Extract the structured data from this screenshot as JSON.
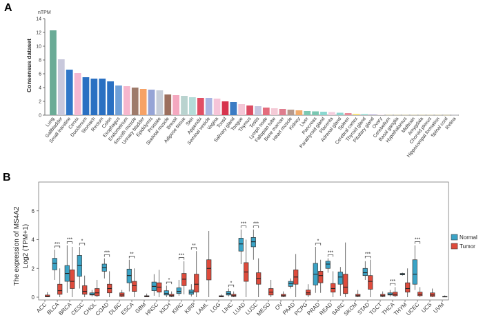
{
  "chart_data": [
    {
      "type": "bar",
      "panel_label": "A",
      "ylabel": "Consensus dataset",
      "unit_label": "nTPM",
      "ylim": [
        0,
        14
      ],
      "yticks": [
        0,
        2,
        4,
        6,
        8,
        10,
        12,
        14
      ],
      "categories": [
        "Lung",
        "Gallbladder",
        "Small intestine",
        "Cervix",
        "Duodenum",
        "Stomach",
        "Rectum",
        "Colon",
        "Esophagus",
        "Endometrium",
        "Smooth muscle",
        "Urinary bladder",
        "Epididymis",
        "Prostate",
        "Skeletal muscle",
        "Breast",
        "Adipose tissue",
        "Skin",
        "Appendix",
        "Seminal vesicle",
        "Vagina",
        "Tonsil",
        "Salivary gland",
        "Tongue",
        "Thymus",
        "Testis",
        "Lymph node",
        "Fallopian tube",
        "Bone marrow",
        "Heart muscle",
        "Kidney",
        "Liver",
        "Pancreas",
        "Parathyroid gland",
        "Placenta",
        "Adrenal gland",
        "Spleen",
        "Cerebral cortex",
        "Thyroid gland",
        "Pituitary gland",
        "Ovary",
        "Cerebellum",
        "Basal ganglia",
        "Hypothalamus",
        "Midbrain",
        "Amygdala",
        "Choroid plexus",
        "Hippocampal formation",
        "Spinal cord",
        "Retina"
      ],
      "values": [
        12.3,
        8.1,
        6.6,
        6.1,
        5.5,
        5.3,
        5.3,
        4.9,
        4.3,
        4.2,
        4.0,
        3.8,
        3.7,
        3.6,
        3.0,
        2.9,
        2.8,
        2.6,
        2.5,
        2.5,
        2.4,
        2.0,
        1.9,
        1.6,
        1.4,
        1.3,
        1.1,
        1.0,
        0.9,
        0.8,
        0.7,
        0.6,
        0.55,
        0.5,
        0.45,
        0.35,
        0.3,
        0.2,
        0.15,
        0.1,
        0.05,
        0.03,
        0.03,
        0.03,
        0.03,
        0.03,
        0.03,
        0.03,
        0.02,
        0.02
      ],
      "colors": [
        "#6aab96",
        "#c8c8dc",
        "#2f77c8",
        "#f4b8d2",
        "#2a70c2",
        "#2a70c2",
        "#2a70c2",
        "#2a70c2",
        "#6fa0d8",
        "#f6b6cd",
        "#9e7a6a",
        "#f6a266",
        "#96a4d6",
        "#c7ced9",
        "#9c6f5e",
        "#f4a8bf",
        "#b9d3cf",
        "#b4dcd8",
        "#e14f64",
        "#aab5e2",
        "#f6c4d8",
        "#d7344e",
        "#3c7cc4",
        "#f4c6d6",
        "#dc4b62",
        "#c6c6e0",
        "#e46b7c",
        "#f4cad6",
        "#df7d8e",
        "#b89a8c",
        "#f2ab6a",
        "#7cc8b2",
        "#7cc8b2",
        "#8bd8d0",
        "#f4cede",
        "#8dd6d0",
        "#ea8c9a",
        "#f6e27c",
        "#92d8d0",
        "#b2a7d6",
        "#ecc6d8",
        "#f0e286",
        "#f0e286",
        "#f0e286",
        "#f0e286",
        "#f0e286",
        "#f0e286",
        "#f0e286",
        "#f0e286",
        "#c8c8dc"
      ]
    },
    {
      "type": "box",
      "panel_label": "B",
      "ylabel_line1": "The expression of MS4A2",
      "ylabel_line2": "Log2 (TPM+1)",
      "ylim": [
        0,
        8
      ],
      "yticks": [
        0,
        2,
        4,
        6
      ],
      "legend": {
        "title": "",
        "items": [
          {
            "name": "Normal",
            "color": "#3aa3c6"
          },
          {
            "name": "Tumor",
            "color": "#de4b3c"
          }
        ],
        "placement": "right"
      },
      "categories": [
        "ACC",
        "BLCA",
        "BRCA",
        "CESC",
        "CHOL",
        "COAD",
        "DLBC",
        "ESCA",
        "GBM",
        "HNSC",
        "KICH",
        "KIRC",
        "KIRP",
        "LAML",
        "LGG",
        "LIHC",
        "LUAD",
        "LUSC",
        "MESO",
        "OV",
        "PAAD",
        "PCPG",
        "PRAD",
        "READ",
        "SARC",
        "SKCM",
        "STAD",
        "TGCT",
        "THCA",
        "THYM",
        "UCEC",
        "UCS",
        "UVM"
      ],
      "series": [
        {
          "name": "Normal",
          "boxes": [
            null,
            {
              "category": "BLCA",
              "whisker_low": 1.2,
              "q1": 1.9,
              "median": 2.35,
              "q3": 2.7,
              "whisker_high": 3.3
            },
            {
              "category": "BRCA",
              "whisker_low": 0.3,
              "q1": 1.1,
              "median": 1.65,
              "q3": 2.2,
              "whisker_high": 3.6
            },
            {
              "category": "CESC",
              "whisker_low": 0.6,
              "q1": 1.45,
              "median": 2.2,
              "q3": 2.9,
              "whisker_high": 3.5
            },
            {
              "category": "CHOL",
              "whisker_low": 0.05,
              "q1": 0.15,
              "median": 0.2,
              "q3": 0.3,
              "whisker_high": 0.5
            },
            {
              "category": "COAD",
              "whisker_low": 1.3,
              "q1": 1.8,
              "median": 2.05,
              "q3": 2.3,
              "whisker_high": 2.7
            },
            null,
            {
              "category": "ESCA",
              "whisker_low": 0.4,
              "q1": 1.0,
              "median": 1.5,
              "q3": 1.95,
              "whisker_high": 2.6
            },
            null,
            {
              "category": "HNSC",
              "whisker_low": 0.1,
              "q1": 0.45,
              "median": 0.75,
              "q3": 1.05,
              "whisker_high": 1.6
            },
            {
              "category": "KICH",
              "whisker_low": 0.0,
              "q1": 0.15,
              "median": 0.25,
              "q3": 0.45,
              "whisker_high": 0.8
            },
            {
              "category": "KIRC",
              "whisker_low": 0.1,
              "q1": 0.25,
              "median": 0.4,
              "q3": 0.65,
              "whisker_high": 1.2
            },
            {
              "category": "KIRP",
              "whisker_low": 0.05,
              "q1": 0.2,
              "median": 0.35,
              "q3": 0.5,
              "whisker_high": 0.9
            },
            null,
            null,
            {
              "category": "LIHC",
              "whisker_low": 0.05,
              "q1": 0.15,
              "median": 0.25,
              "q3": 0.4,
              "whisker_high": 0.6
            },
            {
              "category": "LUAD",
              "whisker_low": 2.3,
              "q1": 3.2,
              "median": 3.7,
              "q3": 4.1,
              "whisker_high": 4.7
            },
            {
              "category": "LUSC",
              "whisker_low": 2.6,
              "q1": 3.5,
              "median": 3.85,
              "q3": 4.15,
              "whisker_high": 4.7
            },
            null,
            null,
            {
              "category": "PAAD",
              "whisker_low": 0.6,
              "q1": 0.75,
              "median": 0.95,
              "q3": 1.1,
              "whisker_high": 1.3
            },
            null,
            {
              "category": "PRAD",
              "whisker_low": 0.3,
              "q1": 0.85,
              "median": 1.6,
              "q3": 2.35,
              "whisker_high": 3.5
            },
            {
              "category": "READ",
              "whisker_low": 1.7,
              "q1": 2.0,
              "median": 2.3,
              "q3": 2.5,
              "whisker_high": 2.7
            },
            {
              "category": "SARC",
              "whisker_low": 0.1,
              "q1": 0.9,
              "median": 1.4,
              "q3": 1.75,
              "whisker_high": 2.1
            },
            null,
            {
              "category": "STAD",
              "whisker_low": 1.2,
              "q1": 1.5,
              "median": 1.7,
              "q3": 2.0,
              "whisker_high": 2.5
            },
            null,
            {
              "category": "THCA",
              "whisker_low": 0.05,
              "q1": 0.15,
              "median": 0.2,
              "q3": 0.3,
              "whisker_high": 0.5
            },
            {
              "category": "THYM",
              "whisker_low": 1.5,
              "q1": 1.55,
              "median": 1.6,
              "q3": 1.65,
              "whisker_high": 1.7
            },
            {
              "category": "UCEC",
              "whisker_low": 0.5,
              "q1": 0.9,
              "median": 1.6,
              "q3": 2.6,
              "whisker_high": 3.6
            },
            null,
            null
          ]
        },
        {
          "name": "Tumor",
          "boxes": [
            {
              "category": "ACC",
              "whisker_low": 0.0,
              "q1": 0.02,
              "median": 0.06,
              "q3": 0.15,
              "whisker_high": 0.35
            },
            {
              "category": "BLCA",
              "whisker_low": 0.0,
              "q1": 0.2,
              "median": 0.45,
              "q3": 0.9,
              "whisker_high": 2.0
            },
            {
              "category": "BRCA",
              "whisker_low": 0.0,
              "q1": 0.6,
              "median": 1.1,
              "q3": 1.9,
              "whisker_high": 3.5
            },
            {
              "category": "CESC",
              "whisker_low": 0.0,
              "q1": 0.2,
              "median": 0.4,
              "q3": 0.8,
              "whisker_high": 1.5
            },
            {
              "category": "CHOL",
              "whisker_low": 0.0,
              "q1": 0.1,
              "median": 0.3,
              "q3": 0.6,
              "whisker_high": 1.2
            },
            {
              "category": "COAD",
              "whisker_low": 0.0,
              "q1": 0.3,
              "median": 0.6,
              "q3": 0.9,
              "whisker_high": 1.8
            },
            {
              "category": "DLBC",
              "whisker_low": 0.0,
              "q1": 0.05,
              "median": 0.15,
              "q3": 0.3,
              "whisker_high": 0.5
            },
            {
              "category": "ESCA",
              "whisker_low": 0.0,
              "q1": 0.4,
              "median": 0.8,
              "q3": 1.1,
              "whisker_high": 2.0
            },
            {
              "category": "GBM",
              "whisker_low": 0.0,
              "q1": 0.02,
              "median": 0.05,
              "q3": 0.1,
              "whisker_high": 0.25
            },
            {
              "category": "HNSC",
              "whisker_low": 0.0,
              "q1": 0.35,
              "median": 0.7,
              "q3": 1.0,
              "whisker_high": 1.9
            },
            {
              "category": "KICH",
              "whisker_low": 0.0,
              "q1": 0.05,
              "median": 0.1,
              "q3": 0.2,
              "whisker_high": 0.4
            },
            {
              "category": "KIRC",
              "whisker_low": 0.2,
              "q1": 0.8,
              "median": 1.25,
              "q3": 1.65,
              "whisker_high": 2.5
            },
            {
              "category": "KIRP",
              "whisker_low": 0.0,
              "q1": 0.35,
              "median": 0.9,
              "q3": 1.6,
              "whisker_high": 3.2
            },
            {
              "category": "LAML",
              "whisker_low": 0.0,
              "q1": 1.2,
              "median": 2.0,
              "q3": 2.6,
              "whisker_high": 4.6
            },
            {
              "category": "LGG",
              "whisker_low": 0.0,
              "q1": 0.02,
              "median": 0.05,
              "q3": 0.1,
              "whisker_high": 0.2
            },
            {
              "category": "LIHC",
              "whisker_low": 0.0,
              "q1": 0.05,
              "median": 0.1,
              "q3": 0.2,
              "whisker_high": 0.4
            },
            {
              "category": "LUAD",
              "whisker_low": 0.0,
              "q1": 1.1,
              "median": 1.75,
              "q3": 2.4,
              "whisker_high": 4.0
            },
            {
              "category": "LUSC",
              "whisker_low": 0.0,
              "q1": 0.9,
              "median": 1.3,
              "q3": 1.7,
              "whisker_high": 2.7
            },
            {
              "category": "MESO",
              "whisker_low": 0.0,
              "q1": 0.15,
              "median": 0.35,
              "q3": 0.6,
              "whisker_high": 1.2
            },
            {
              "category": "OV",
              "whisker_low": 0.0,
              "q1": 0.05,
              "median": 0.1,
              "q3": 0.2,
              "whisker_high": 0.4
            },
            {
              "category": "PAAD",
              "whisker_low": 0.0,
              "q1": 0.9,
              "median": 1.4,
              "q3": 1.9,
              "whisker_high": 3.0
            },
            {
              "category": "PCPG",
              "whisker_low": 0.0,
              "q1": 0.15,
              "median": 0.3,
              "q3": 0.5,
              "whisker_high": 0.9
            },
            {
              "category": "PRAD",
              "whisker_low": 0.3,
              "q1": 1.0,
              "median": 1.5,
              "q3": 1.8,
              "whisker_high": 2.6
            },
            {
              "category": "READ",
              "whisker_low": 0.0,
              "q1": 0.35,
              "median": 0.6,
              "q3": 0.95,
              "whisker_high": 1.8
            },
            {
              "category": "SARC",
              "whisker_low": 0.0,
              "q1": 0.25,
              "median": 0.7,
              "q3": 1.6,
              "whisker_high": 3.8
            },
            {
              "category": "SKCM",
              "whisker_low": 0.0,
              "q1": 0.05,
              "median": 0.1,
              "q3": 0.2,
              "whisker_high": 0.5
            },
            {
              "category": "STAD",
              "whisker_low": 0.0,
              "q1": 0.55,
              "median": 1.1,
              "q3": 1.5,
              "whisker_high": 2.6
            },
            {
              "category": "TGCT",
              "whisker_low": 0.0,
              "q1": 0.05,
              "median": 0.1,
              "q3": 0.2,
              "whisker_high": 0.4
            },
            {
              "category": "THCA",
              "whisker_low": 0.0,
              "q1": 0.1,
              "median": 0.2,
              "q3": 0.35,
              "whisker_high": 0.7
            },
            {
              "category": "THYM",
              "whisker_low": 0.0,
              "q1": 0.35,
              "median": 0.6,
              "q3": 1.0,
              "whisker_high": 2.0
            },
            {
              "category": "UCEC",
              "whisker_low": 0.0,
              "q1": 0.1,
              "median": 0.2,
              "q3": 0.35,
              "whisker_high": 0.7
            },
            {
              "category": "UCS",
              "whisker_low": 0.0,
              "q1": 0.05,
              "median": 0.15,
              "q3": 0.3,
              "whisker_high": 0.6
            },
            {
              "category": "UVM",
              "whisker_low": 0.0,
              "q1": 0.01,
              "median": 0.03,
              "q3": 0.06,
              "whisker_high": 0.12
            }
          ]
        }
      ],
      "significance": [
        {
          "category": "BLCA",
          "label": "***"
        },
        {
          "category": "BRCA",
          "label": "***"
        },
        {
          "category": "CESC",
          "label": "*"
        },
        {
          "category": "COAD",
          "label": "***"
        },
        {
          "category": "ESCA",
          "label": "**"
        },
        {
          "category": "KICH",
          "label": "*"
        },
        {
          "category": "KIRC",
          "label": "***"
        },
        {
          "category": "KIRP",
          "label": "**"
        },
        {
          "category": "LIHC",
          "label": "*"
        },
        {
          "category": "LUAD",
          "label": "***"
        },
        {
          "category": "LUSC",
          "label": "***"
        },
        {
          "category": "PRAD",
          "label": "*"
        },
        {
          "category": "READ",
          "label": "***"
        },
        {
          "category": "STAD",
          "label": "***"
        },
        {
          "category": "THCA",
          "label": "***"
        },
        {
          "category": "UCEC",
          "label": "***"
        }
      ]
    }
  ]
}
